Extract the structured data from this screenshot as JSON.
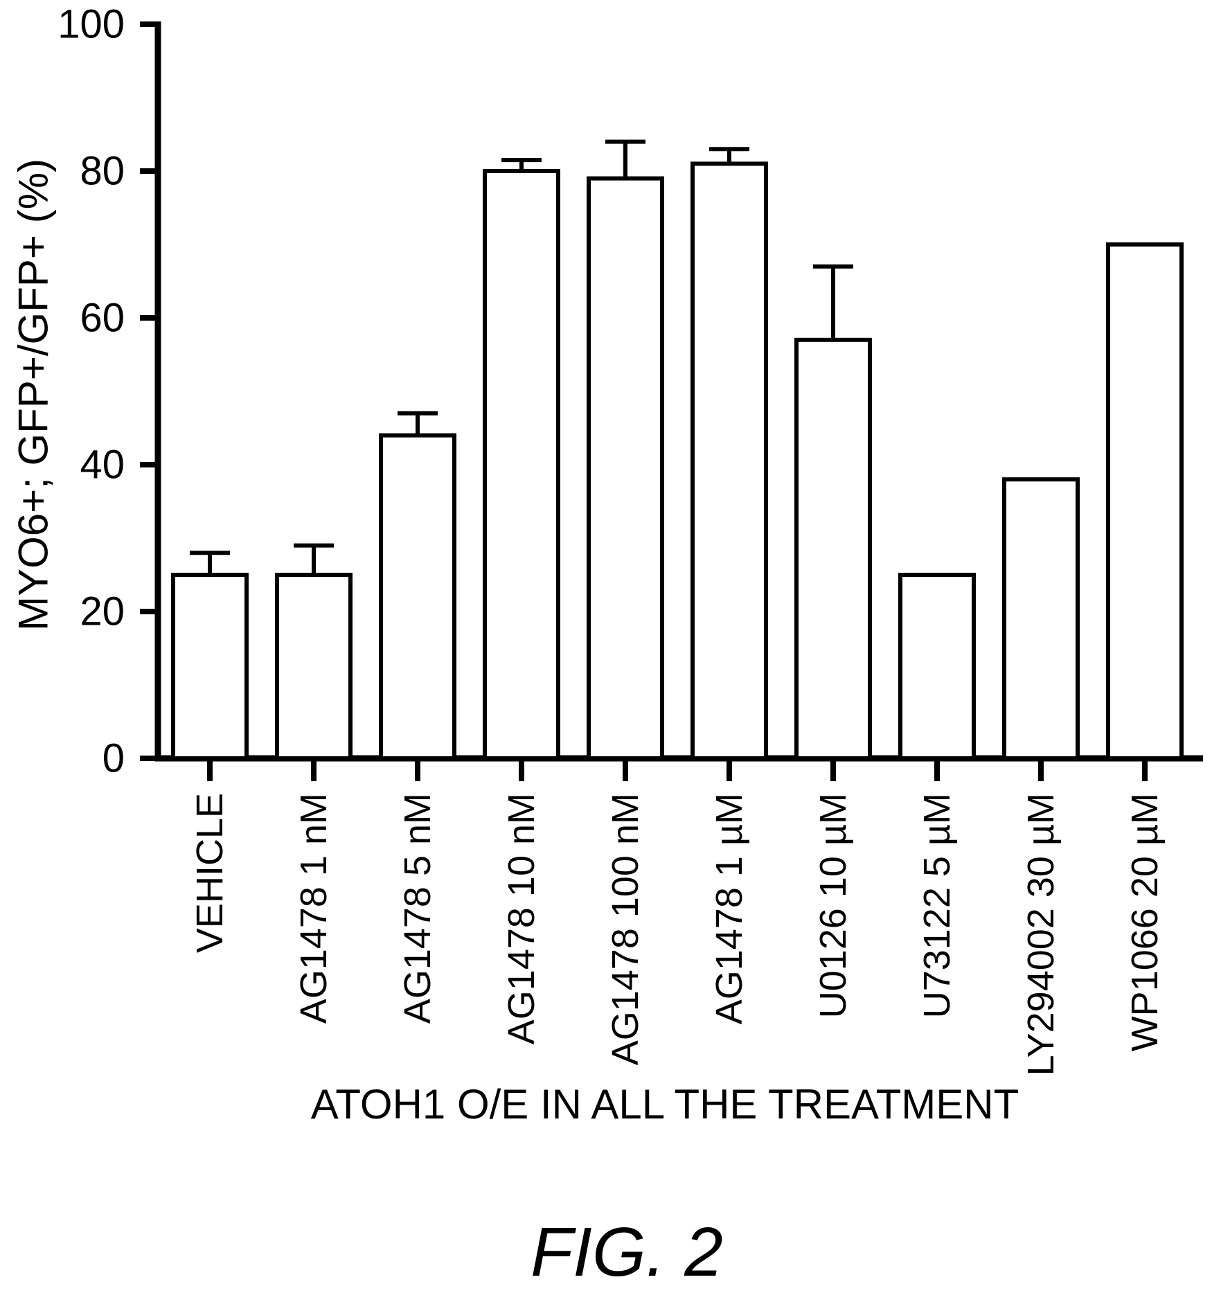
{
  "figure": {
    "caption": "FIG. 2"
  },
  "chart_data": {
    "type": "bar",
    "title": "",
    "xlabel": "ATOH1 O/E IN ALL THE TREATMENT",
    "ylabel": "MYO6+; GFP+/GFP+ (%)",
    "ylim": [
      0,
      100
    ],
    "yticks": [
      0,
      20,
      40,
      60,
      80,
      100
    ],
    "grid": false,
    "legend": null,
    "bar_fill": "#ffffff",
    "bar_stroke": "#000000",
    "categories": [
      "VEHICLE",
      "AG1478 1 nM",
      "AG1478 5 nM",
      "AG1478 10 nM",
      "AG1478 100 nM",
      "AG1478 1 µM",
      "U0126 10 µM",
      "U73122 5 µM",
      "LY294002 30 µM",
      "WP1066 20 µM"
    ],
    "values": [
      25,
      25,
      44,
      80,
      79,
      81,
      57,
      25,
      38,
      70
    ],
    "error_plus": [
      3,
      4,
      3,
      1.5,
      5,
      2,
      10,
      0,
      0,
      0
    ]
  }
}
